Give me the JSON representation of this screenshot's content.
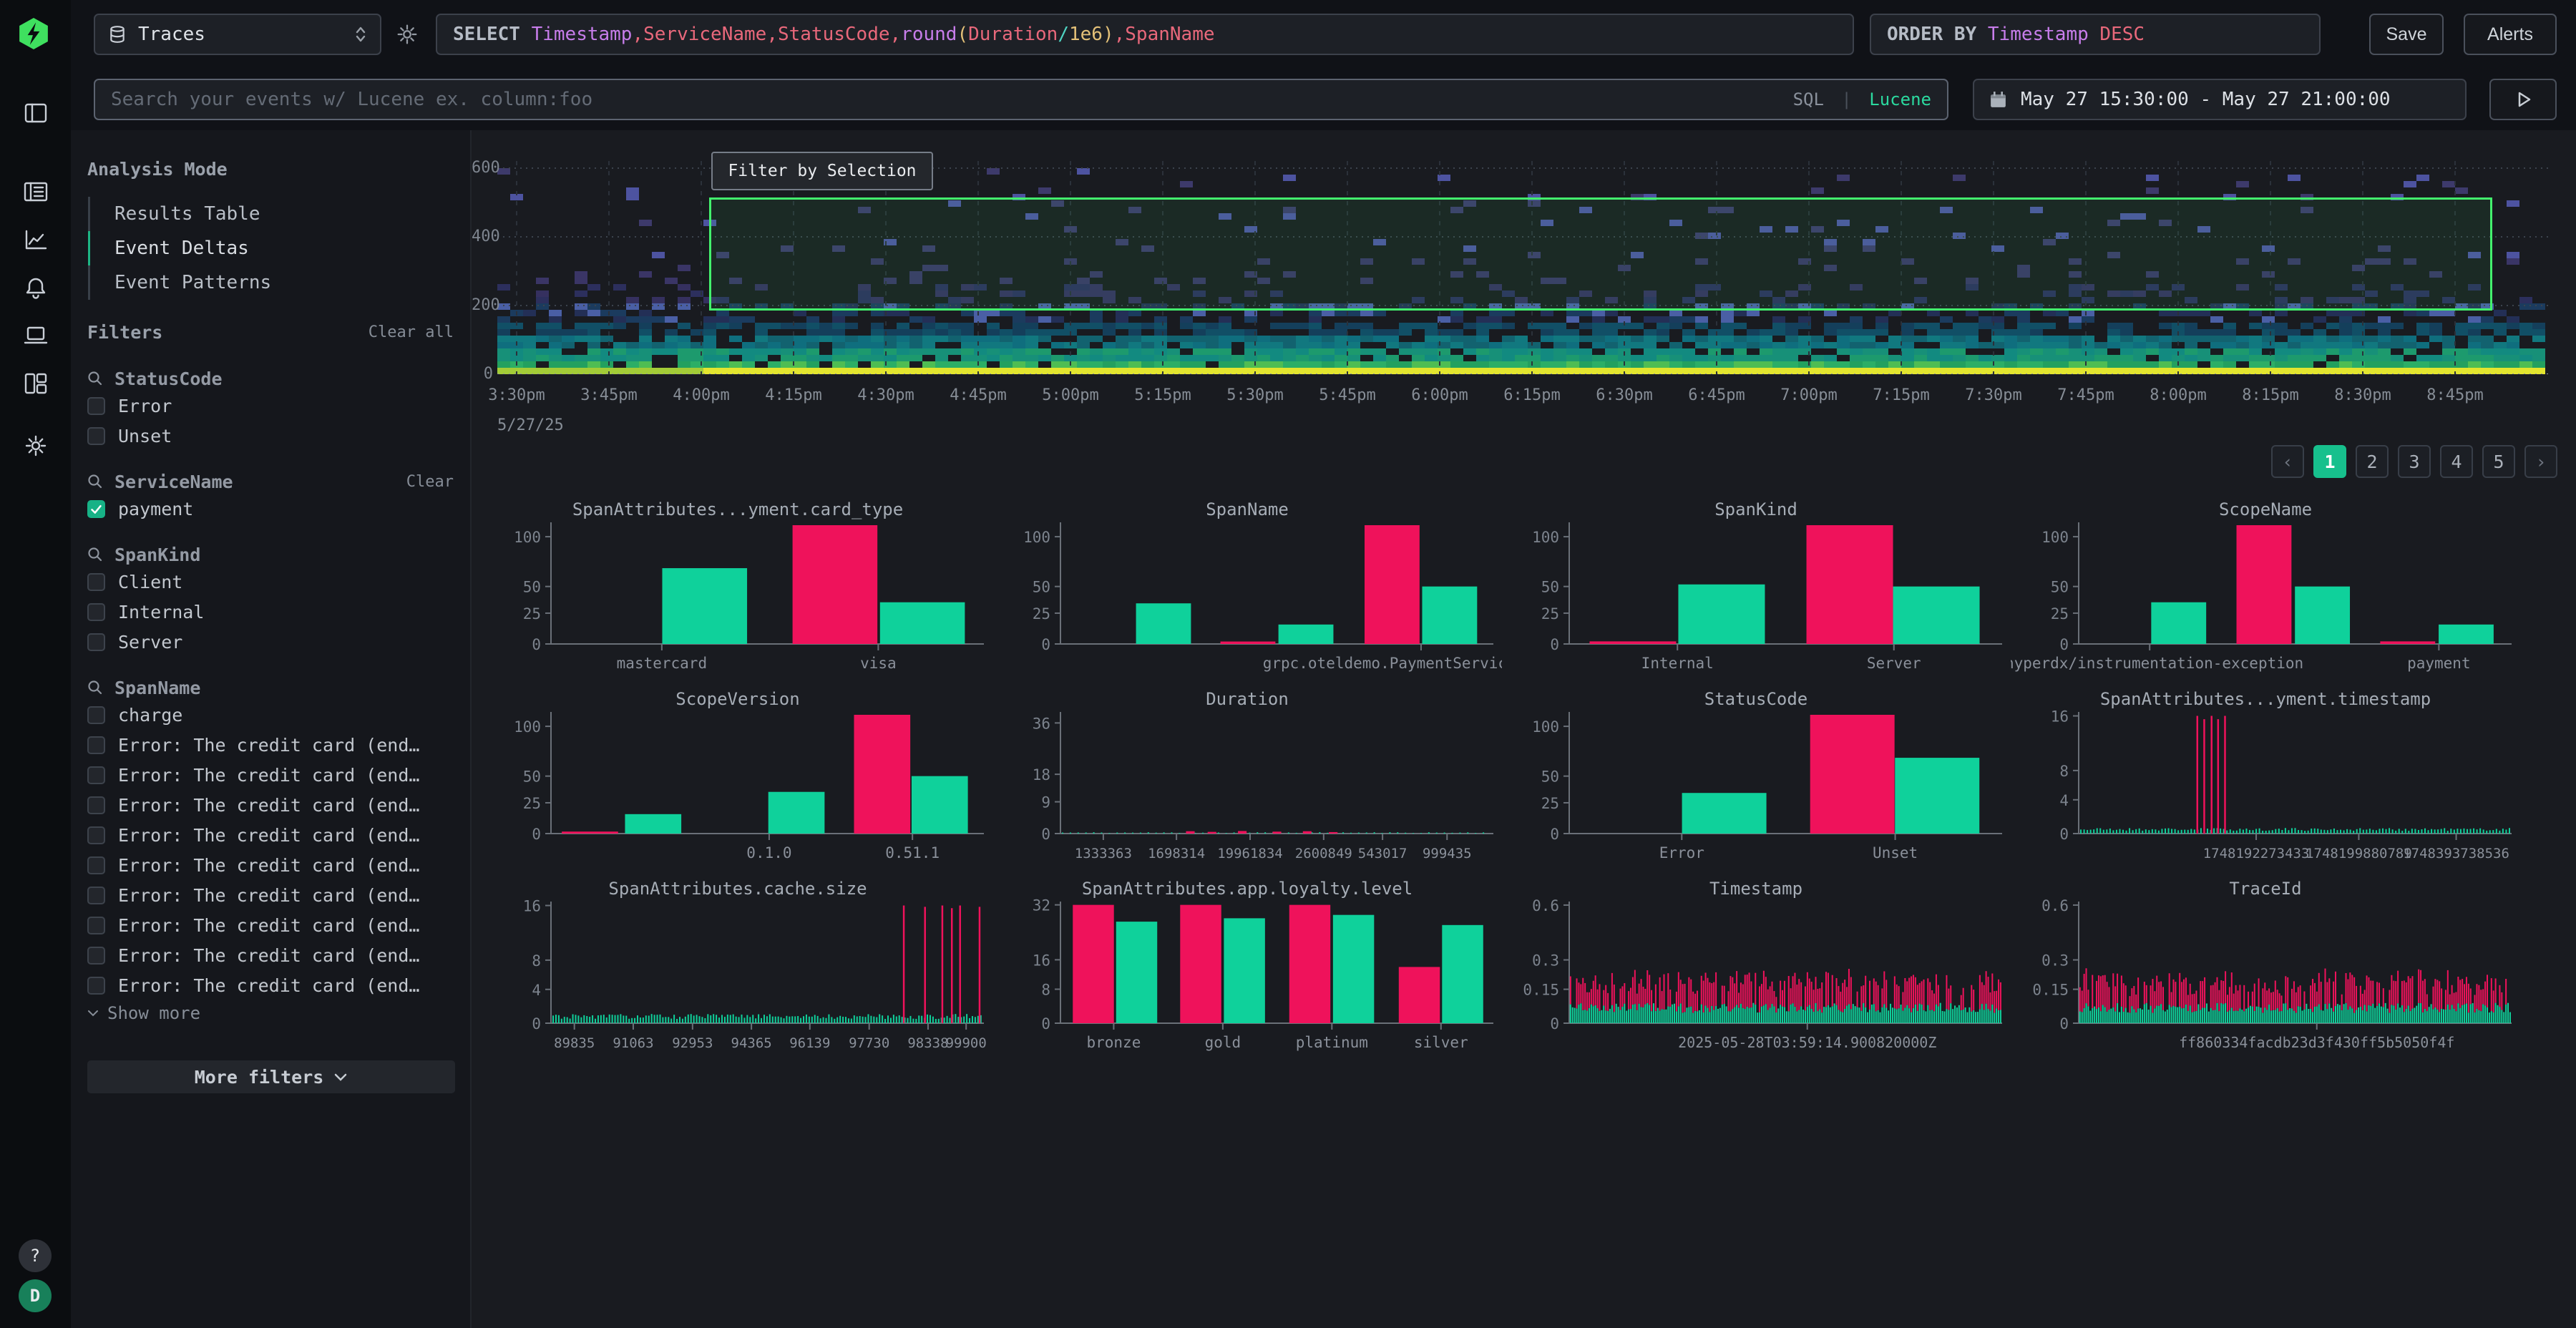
{
  "topbar": {
    "source": {
      "label": "Traces"
    },
    "sql_tokens": [
      [
        "SELECT ",
        "kw"
      ],
      [
        "Timestamp",
        "purple"
      ],
      [
        ",",
        "red"
      ],
      [
        "ServiceName",
        "red"
      ],
      [
        ",",
        "red"
      ],
      [
        "StatusCode",
        "red"
      ],
      [
        ",",
        "red"
      ],
      [
        "round",
        "purple"
      ],
      [
        "(",
        "yellow"
      ],
      [
        "Duration",
        "red"
      ],
      [
        "/",
        "cyan"
      ],
      [
        "1e6",
        "yellow"
      ],
      [
        ")",
        "yellow"
      ],
      [
        ",",
        "red"
      ],
      [
        "SpanName",
        "red"
      ]
    ],
    "orderby_tokens": [
      [
        "ORDER BY ",
        "kw"
      ],
      [
        "Timestamp",
        "purple"
      ],
      [
        " DESC",
        "red"
      ]
    ],
    "save": "Save",
    "alerts": "Alerts"
  },
  "searchbar": {
    "placeholder": "Search your events w/ Lucene ex. column:foo",
    "lang_sql": "SQL",
    "lang_sep": "|",
    "lang_lucene": "Lucene",
    "date_range": "May 27 15:30:00 - May 27 21:00:00"
  },
  "sidebar": {
    "analysis_mode": {
      "title": "Analysis Mode",
      "items": [
        {
          "label": "Results Table",
          "active": false
        },
        {
          "label": "Event Deltas",
          "active": true
        },
        {
          "label": "Event Patterns",
          "active": false
        }
      ]
    },
    "filters": {
      "title": "Filters",
      "clear_all": "Clear all",
      "more_filters": "More filters",
      "groups": [
        {
          "name": "StatusCode",
          "options": [
            {
              "label": "Error",
              "checked": false
            },
            {
              "label": "Unset",
              "checked": false
            }
          ]
        },
        {
          "name": "ServiceName",
          "clear": "Clear",
          "options": [
            {
              "label": "payment",
              "checked": true
            }
          ]
        },
        {
          "name": "SpanKind",
          "options": [
            {
              "label": "Client",
              "checked": false
            },
            {
              "label": "Internal",
              "checked": false
            },
            {
              "label": "Server",
              "checked": false
            }
          ]
        },
        {
          "name": "SpanName",
          "show_more": "Show more",
          "options": [
            {
              "label": "charge",
              "checked": false
            },
            {
              "label": "Error: The credit card (end…",
              "checked": false
            },
            {
              "label": "Error: The credit card (end…",
              "checked": false
            },
            {
              "label": "Error: The credit card (end…",
              "checked": false
            },
            {
              "label": "Error: The credit card (end…",
              "checked": false
            },
            {
              "label": "Error: The credit card (end…",
              "checked": false
            },
            {
              "label": "Error: The credit card (end…",
              "checked": false
            },
            {
              "label": "Error: The credit card (end…",
              "checked": false
            },
            {
              "label": "Error: The credit card (end…",
              "checked": false
            },
            {
              "label": "Error: The credit card (end…",
              "checked": false
            }
          ]
        }
      ]
    },
    "help": "?",
    "avatar": "D"
  },
  "pagination": {
    "prev": "‹",
    "pages": [
      "1",
      "2",
      "3",
      "4",
      "5"
    ],
    "active": "1",
    "next": "›"
  },
  "colors": {
    "pink": "#ef125b",
    "green": "#0fd19b",
    "accent": "#17b286",
    "selection": "#43f16d"
  },
  "chart_data": [
    {
      "id": "events-heatmap",
      "type": "heatmap",
      "title": "",
      "ylim": [
        0,
        600
      ],
      "yticks": [
        0,
        200,
        400,
        600
      ],
      "xticks": [
        "3:30pm",
        "3:45pm",
        "4:00pm",
        "4:15pm",
        "4:30pm",
        "4:45pm",
        "5:00pm",
        "5:15pm",
        "5:30pm",
        "5:45pm",
        "6:00pm",
        "6:15pm",
        "6:30pm",
        "6:45pm",
        "7:00pm",
        "7:15pm",
        "7:30pm",
        "7:45pm",
        "8:00pm",
        "8:15pm",
        "8:30pm",
        "8:45pm"
      ],
      "date_label": "5/27/25",
      "tooltip": "Filter by Selection",
      "selection": {
        "x0": 0.103,
        "x1": 0.971,
        "v0": 185,
        "v1": 514
      },
      "seed": 7
    },
    {
      "id": "card-type",
      "type": "bars",
      "title": "SpanAttributes...yment.card_type",
      "yticks": [
        0,
        25,
        50,
        100
      ],
      "ymax": 115,
      "bar_w": 0.196,
      "bars": [
        {
          "x": 0.355,
          "v": 68,
          "c": "g"
        },
        {
          "x": 0.656,
          "v": 112,
          "c": "p"
        },
        {
          "x": 0.858,
          "v": 35,
          "c": "g"
        }
      ],
      "xticks": [
        {
          "label": "mastercard",
          "x": 0.256
        },
        {
          "label": "visa",
          "x": 0.756
        }
      ]
    },
    {
      "id": "span-name",
      "type": "bars",
      "title": "SpanName",
      "yticks": [
        0,
        25,
        50,
        100
      ],
      "ymax": 115,
      "bar_w": 0.127,
      "bars": [
        {
          "x": 0.238,
          "v": 34,
          "c": "g"
        },
        {
          "x": 0.433,
          "v": 1.5,
          "c": "p"
        },
        {
          "x": 0.567,
          "v": 15,
          "c": "g"
        },
        {
          "x": 0.766,
          "v": 112,
          "c": "p"
        },
        {
          "x": 0.899,
          "v": 50,
          "c": "g"
        }
      ],
      "xticks": [
        {
          "label": "grpc.oteldemo.PaymentService/Charge",
          "x": 0.833
        }
      ]
    },
    {
      "id": "span-kind",
      "type": "bars",
      "title": "SpanKind",
      "yticks": [
        0,
        25,
        50,
        100
      ],
      "ymax": 115,
      "bar_w": 0.2,
      "bars": [
        {
          "x": 0.147,
          "v": 1.6,
          "c": "p"
        },
        {
          "x": 0.352,
          "v": 52,
          "c": "g"
        },
        {
          "x": 0.648,
          "v": 112,
          "c": "p"
        },
        {
          "x": 0.848,
          "v": 50,
          "c": "g"
        }
      ],
      "xticks": [
        {
          "label": "Internal",
          "x": 0.25
        },
        {
          "label": "Server",
          "x": 0.75
        }
      ]
    },
    {
      "id": "scope-name",
      "type": "bars",
      "title": "ScopeName",
      "yticks": [
        0,
        25,
        50,
        100
      ],
      "ymax": 115,
      "bar_w": 0.127,
      "bars": [
        {
          "x": 0.231,
          "v": 35,
          "c": "g"
        },
        {
          "x": 0.428,
          "v": 112,
          "c": "p"
        },
        {
          "x": 0.563,
          "v": 50,
          "c": "g"
        },
        {
          "x": 0.76,
          "v": 1.6,
          "c": "p"
        },
        {
          "x": 0.895,
          "v": 15,
          "c": "g"
        }
      ],
      "xticks": [
        {
          "label": "@hyperdx/instrumentation-exception",
          "x": 0.164
        },
        {
          "label": "payment",
          "x": 0.832
        }
      ]
    },
    {
      "id": "scope-version",
      "type": "bars",
      "title": "ScopeVersion",
      "yticks": [
        0,
        25,
        50,
        100
      ],
      "ymax": 115,
      "bar_w": 0.13,
      "bars": [
        {
          "x": 0.09,
          "v": 1.2,
          "c": "p"
        },
        {
          "x": 0.236,
          "v": 15,
          "c": "g"
        },
        {
          "x": 0.567,
          "v": 35,
          "c": "g"
        },
        {
          "x": 0.765,
          "v": 112,
          "c": "p"
        },
        {
          "x": 0.898,
          "v": 50,
          "c": "g"
        }
      ],
      "xticks": [
        {
          "label": "0.1.0",
          "x": 0.504
        },
        {
          "label": "0.51.1",
          "x": 0.835
        }
      ]
    },
    {
      "id": "duration",
      "type": "bars",
      "title": "Duration",
      "yticks": [
        0,
        9,
        18,
        36
      ],
      "ymax": 40,
      "bar_w": 0.02,
      "label_size": 19,
      "bars": [
        {
          "x": 0.3,
          "v": 0.5,
          "c": "p"
        },
        {
          "x": 0.35,
          "v": 0.35,
          "c": "p"
        },
        {
          "x": 0.42,
          "v": 0.55,
          "c": "p"
        },
        {
          "x": 0.5,
          "v": 0.4,
          "c": "p"
        },
        {
          "x": 0.57,
          "v": 0.5,
          "c": "p"
        },
        {
          "x": 0.63,
          "v": 0.3,
          "c": "p"
        }
      ],
      "comb": {
        "step": 0.018,
        "vlo": 0.1,
        "vhi": 0.3,
        "seed": 11
      },
      "xticks": [
        {
          "label": "1333363",
          "x": 0.099
        },
        {
          "label": "1698314",
          "x": 0.268
        },
        {
          "label": "19961834",
          "x": 0.438
        },
        {
          "label": "2600849",
          "x": 0.608
        },
        {
          "label": "543017",
          "x": 0.744
        },
        {
          "label": "999435",
          "x": 0.893
        }
      ]
    },
    {
      "id": "status-code",
      "type": "bars",
      "title": "StatusCode",
      "yticks": [
        0,
        25,
        50,
        100
      ],
      "ymax": 115,
      "bar_w": 0.195,
      "bars": [
        {
          "x": 0.358,
          "v": 34,
          "c": "g"
        },
        {
          "x": 0.654,
          "v": 112,
          "c": "p"
        },
        {
          "x": 0.85,
          "v": 68,
          "c": "g"
        }
      ],
      "xticks": [
        {
          "label": "Error",
          "x": 0.26
        },
        {
          "label": "Unset",
          "x": 0.753
        }
      ]
    },
    {
      "id": "payment-timestamp",
      "type": "comb",
      "title": "SpanAttributes...yment.timestamp",
      "yticks": [
        0,
        4,
        8,
        16
      ],
      "ymax": 16.6,
      "label_size": 19,
      "comb": {
        "step": 0.0075,
        "vlo": 0.25,
        "vhi": 0.55,
        "seed": 21
      },
      "spikes": [
        {
          "x": 0.274,
          "v": 16
        },
        {
          "x": 0.29,
          "v": 15.5
        },
        {
          "x": 0.307,
          "v": 16
        },
        {
          "x": 0.322,
          "v": 15.5
        },
        {
          "x": 0.338,
          "v": 16
        }
      ],
      "xticks": [
        {
          "label": "1748192273433",
          "x": 0.41
        },
        {
          "label": "1748199880789",
          "x": 0.647
        },
        {
          "label": "1748393738536",
          "x": 0.872
        }
      ]
    },
    {
      "id": "cache-size",
      "type": "comb",
      "title": "SpanAttributes.cache.size",
      "yticks": [
        0,
        4,
        8,
        16
      ],
      "ymax": 16.6,
      "label_size": 19,
      "comb": {
        "step": 0.0065,
        "vlo": 0.4,
        "vhi": 0.95,
        "seed": 31
      },
      "spikes": [
        {
          "x": 0.815,
          "v": 16
        },
        {
          "x": 0.864,
          "v": 15.8
        },
        {
          "x": 0.904,
          "v": 16
        },
        {
          "x": 0.926,
          "v": 15.6
        },
        {
          "x": 0.945,
          "v": 16
        },
        {
          "x": 0.99,
          "v": 15.8
        }
      ],
      "xticks": [
        {
          "label": "89835",
          "x": 0.054
        },
        {
          "label": "91063",
          "x": 0.19
        },
        {
          "label": "92953",
          "x": 0.327
        },
        {
          "label": "94365",
          "x": 0.463
        },
        {
          "label": "96139",
          "x": 0.598
        },
        {
          "label": "97730",
          "x": 0.735
        },
        {
          "label": "98338",
          "x": 0.871
        },
        {
          "label": "99900",
          "x": 0.959
        }
      ]
    },
    {
      "id": "loyalty-level",
      "type": "bars",
      "title": "SpanAttributes.app.loyalty.level",
      "yticks": [
        0,
        8,
        16,
        32
      ],
      "ymax": 33,
      "bar_w": 0.095,
      "bars": [
        {
          "x": 0.076,
          "v": 32,
          "c": "p"
        },
        {
          "x": 0.176,
          "v": 27,
          "c": "g"
        },
        {
          "x": 0.324,
          "v": 32,
          "c": "p"
        },
        {
          "x": 0.425,
          "v": 28,
          "c": "g"
        },
        {
          "x": 0.576,
          "v": 32,
          "c": "p"
        },
        {
          "x": 0.677,
          "v": 29,
          "c": "g"
        },
        {
          "x": 0.829,
          "v": 14,
          "c": "p"
        },
        {
          "x": 0.929,
          "v": 26,
          "c": "g"
        }
      ],
      "xticks": [
        {
          "label": "bronze",
          "x": 0.123
        },
        {
          "label": "gold",
          "x": 0.375
        },
        {
          "label": "platinum",
          "x": 0.627
        },
        {
          "label": "silver",
          "x": 0.879
        }
      ]
    },
    {
      "id": "timestamp",
      "type": "barcode",
      "title": "Timestamp",
      "yticks": [
        0,
        0.15,
        0.3,
        0.6
      ],
      "ymax": 0.62,
      "label_size": 20,
      "barcode": {
        "step": 0.0048,
        "glo": 0.04,
        "ghi": 0.085,
        "plo": 0.07,
        "phi": 0.175,
        "prob": 0.8,
        "seed": 41
      },
      "xticks": [
        {
          "label": "2025-05-28T03:59:14.900820000Z",
          "x": 0.55
        }
      ]
    },
    {
      "id": "trace-id",
      "type": "barcode",
      "title": "TraceId",
      "yticks": [
        0,
        0.15,
        0.3,
        0.6
      ],
      "ymax": 0.62,
      "label_size": 20,
      "barcode": {
        "step": 0.0048,
        "glo": 0.04,
        "ghi": 0.085,
        "plo": 0.07,
        "phi": 0.175,
        "prob": 0.8,
        "seed": 51
      },
      "xticks": [
        {
          "label": "ff860334facdb23d3f430ff5b5050f4f",
          "x": 0.55
        }
      ]
    }
  ]
}
